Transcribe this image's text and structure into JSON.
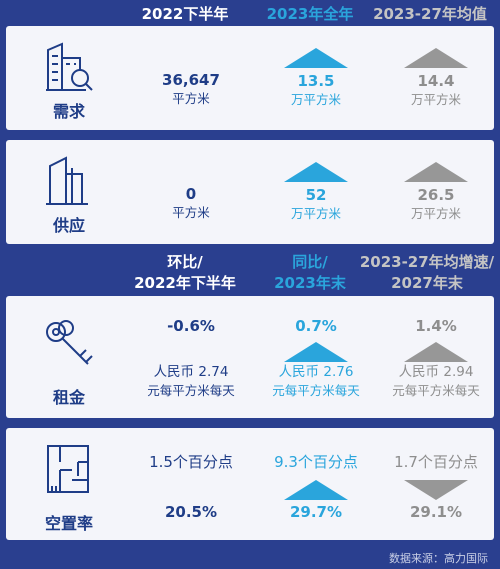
{
  "header1": {
    "col1": "2022下半年",
    "col2": "2023年全年",
    "col3": "2023-27年均值"
  },
  "demand": {
    "label": "需求",
    "icon": "building-search-icon",
    "col1_value": "36,647",
    "col1_unit": "平方米",
    "col2_value": "13.5",
    "col2_unit": "万平方米",
    "col3_value": "14.4",
    "col3_unit": "万平方米"
  },
  "supply": {
    "label": "供应",
    "icon": "buildings-icon",
    "col1_value": "0",
    "col1_unit": "平方米",
    "col2_value": "52",
    "col2_unit": "万平方米",
    "col3_value": "26.5",
    "col3_unit": "万平方米"
  },
  "header2": {
    "col1_line1": "环比/",
    "col1_line2": "2022年下半年",
    "col2_line1": "同比/",
    "col2_line2": "2023年末",
    "col3_line1": "2023-27年均增速/",
    "col3_line2": "2027年末"
  },
  "rent": {
    "label": "租金",
    "icon": "keys-icon",
    "col1_change": "-0.6%",
    "col1_value": "人民币 2.74",
    "col1_unit": "元每平方米每天",
    "col2_change": "0.7%",
    "col2_value": "人民币 2.76",
    "col2_unit": "元每平方米每天",
    "col3_change": "1.4%",
    "col3_value": "人民币 2.94",
    "col3_unit": "元每平方米每天"
  },
  "vacancy": {
    "label": "空置率",
    "icon": "floor-plan-icon",
    "col1_change": "1.5个百分点",
    "col1_value": "20.5%",
    "col2_change": "9.3个百分点",
    "col2_value": "29.7%",
    "col3_change": "1.7个百分点",
    "col3_value": "29.1%"
  },
  "source": "数据来源：高力国际",
  "colors": {
    "background": "#2a3f8f",
    "card": "#f4f5fa",
    "navy": "#1f3d87",
    "accent_blue": "#2aa5dc",
    "gray": "#979797"
  }
}
